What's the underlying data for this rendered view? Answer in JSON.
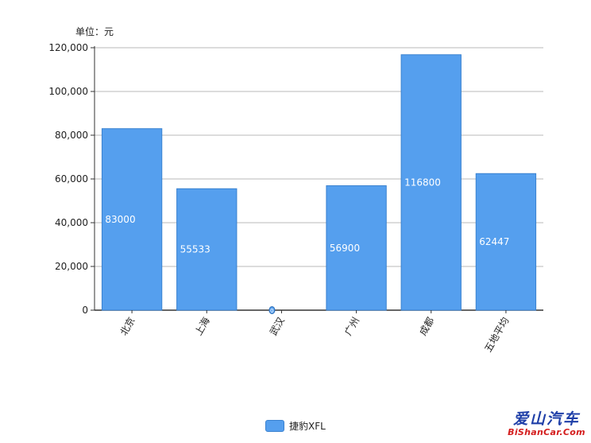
{
  "chart_data": {
    "type": "bar",
    "unit_label": "单位：元",
    "categories": [
      "北京",
      "上海",
      "武汉",
      "广州",
      "成都",
      "五地平均"
    ],
    "series": [
      {
        "name": "捷豹XFL",
        "values": [
          83000,
          55533,
          0,
          56900,
          116800,
          62447
        ]
      }
    ],
    "data_labels": [
      "83000",
      "55533",
      "0",
      "56900",
      "116800",
      "62447"
    ],
    "y_ticks": [
      0,
      20000,
      40000,
      60000,
      80000,
      100000,
      120000
    ],
    "y_tick_labels": [
      "0",
      "20,000",
      "40,000",
      "60,000",
      "80,000",
      "100,000",
      "120,000"
    ],
    "ylim": [
      0,
      120000
    ],
    "grid": true,
    "legend_position": "bottom-center",
    "colors": {
      "bar": "#559fee",
      "bar_border": "#3a82d0"
    }
  },
  "watermark": {
    "cn": "爱山汽车",
    "en": "BiShanCar.Com"
  }
}
